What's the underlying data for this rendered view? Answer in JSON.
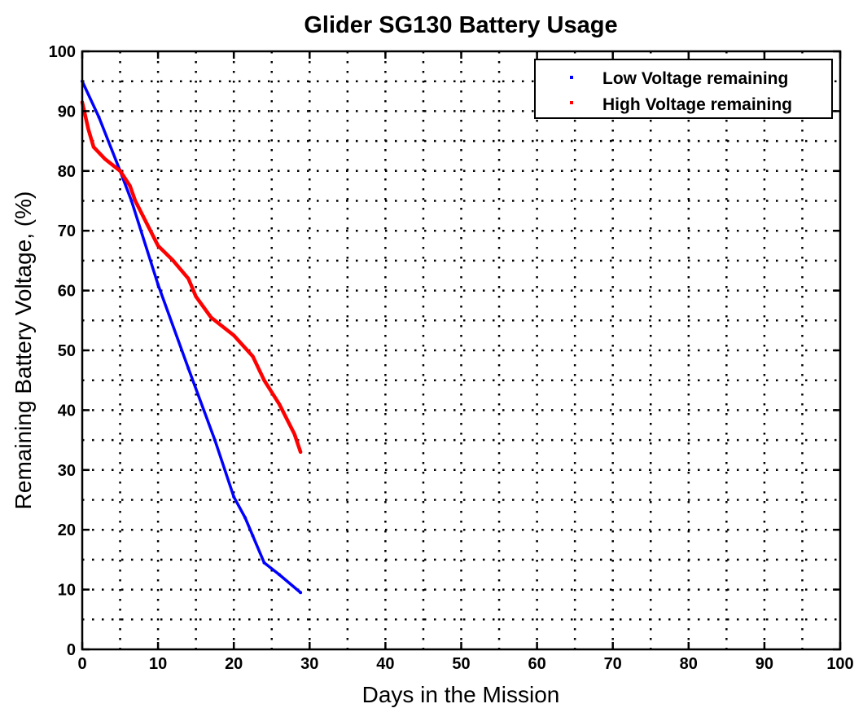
{
  "chart_data": {
    "type": "line",
    "title": "Glider SG130 Battery Usage",
    "xlabel": "Days in the Mission",
    "ylabel": "Remaining Battery Voltage, (%)",
    "xlim": [
      0,
      100
    ],
    "ylim": [
      0,
      100
    ],
    "xticks": [
      "0",
      "10",
      "20",
      "30",
      "40",
      "50",
      "60",
      "70",
      "80",
      "90",
      "100"
    ],
    "yticks": [
      "0",
      "10",
      "20",
      "30",
      "40",
      "50",
      "60",
      "70",
      "80",
      "90",
      "100"
    ],
    "grid": true,
    "legend_position": "top-right",
    "series": [
      {
        "name": "Low Voltage remaining",
        "color": "#0000ff",
        "x": [
          0,
          2.2,
          5,
          6.5,
          10,
          14,
          17.5,
          20,
          21.5,
          22.5,
          24,
          26,
          28.8
        ],
        "y": [
          95,
          89,
          80,
          75,
          61,
          47,
          35,
          25.5,
          22,
          19,
          14.5,
          12.5,
          9.5
        ]
      },
      {
        "name": "High Voltage remaining",
        "color": "#ff0000",
        "x": [
          0,
          0.8,
          1.5,
          3,
          5,
          6.3,
          7,
          10,
          12,
          14,
          15,
          17,
          20,
          22.5,
          24,
          26,
          28,
          28.8
        ],
        "y": [
          91.5,
          87,
          84,
          82,
          80,
          77.5,
          75,
          67.5,
          65,
          62,
          59,
          55.5,
          52.5,
          49,
          45,
          41,
          36,
          33
        ]
      }
    ]
  }
}
